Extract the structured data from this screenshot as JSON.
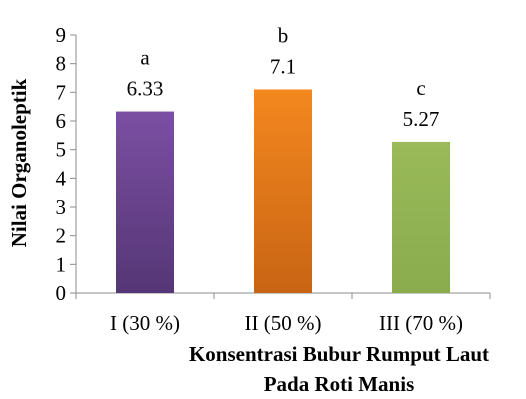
{
  "chart_data": {
    "type": "bar",
    "categories": [
      "I (30 %)",
      "II (50 %)",
      "III (70 %)"
    ],
    "values": [
      6.33,
      7.1,
      5.27
    ],
    "value_labels": [
      "6.33",
      "7.1",
      "5.27"
    ],
    "significance_letters": [
      "a",
      "b",
      "c"
    ],
    "bar_colors": [
      "#7b4fa3",
      "#f4881f",
      "#9aba59"
    ],
    "bar_colors_dark": [
      "#553675",
      "#c86414",
      "#8aac4d"
    ],
    "ylabel": "Nilai Organoleptik",
    "xlabel_lines": [
      "Konsentrasi Bubur Rumput Laut",
      "Pada Roti Manis"
    ],
    "ylim": [
      0,
      9
    ],
    "yticks": [
      "0",
      "1",
      "2",
      "3",
      "4",
      "5",
      "6",
      "7",
      "8",
      "9"
    ],
    "grid": false,
    "legend": "none"
  }
}
